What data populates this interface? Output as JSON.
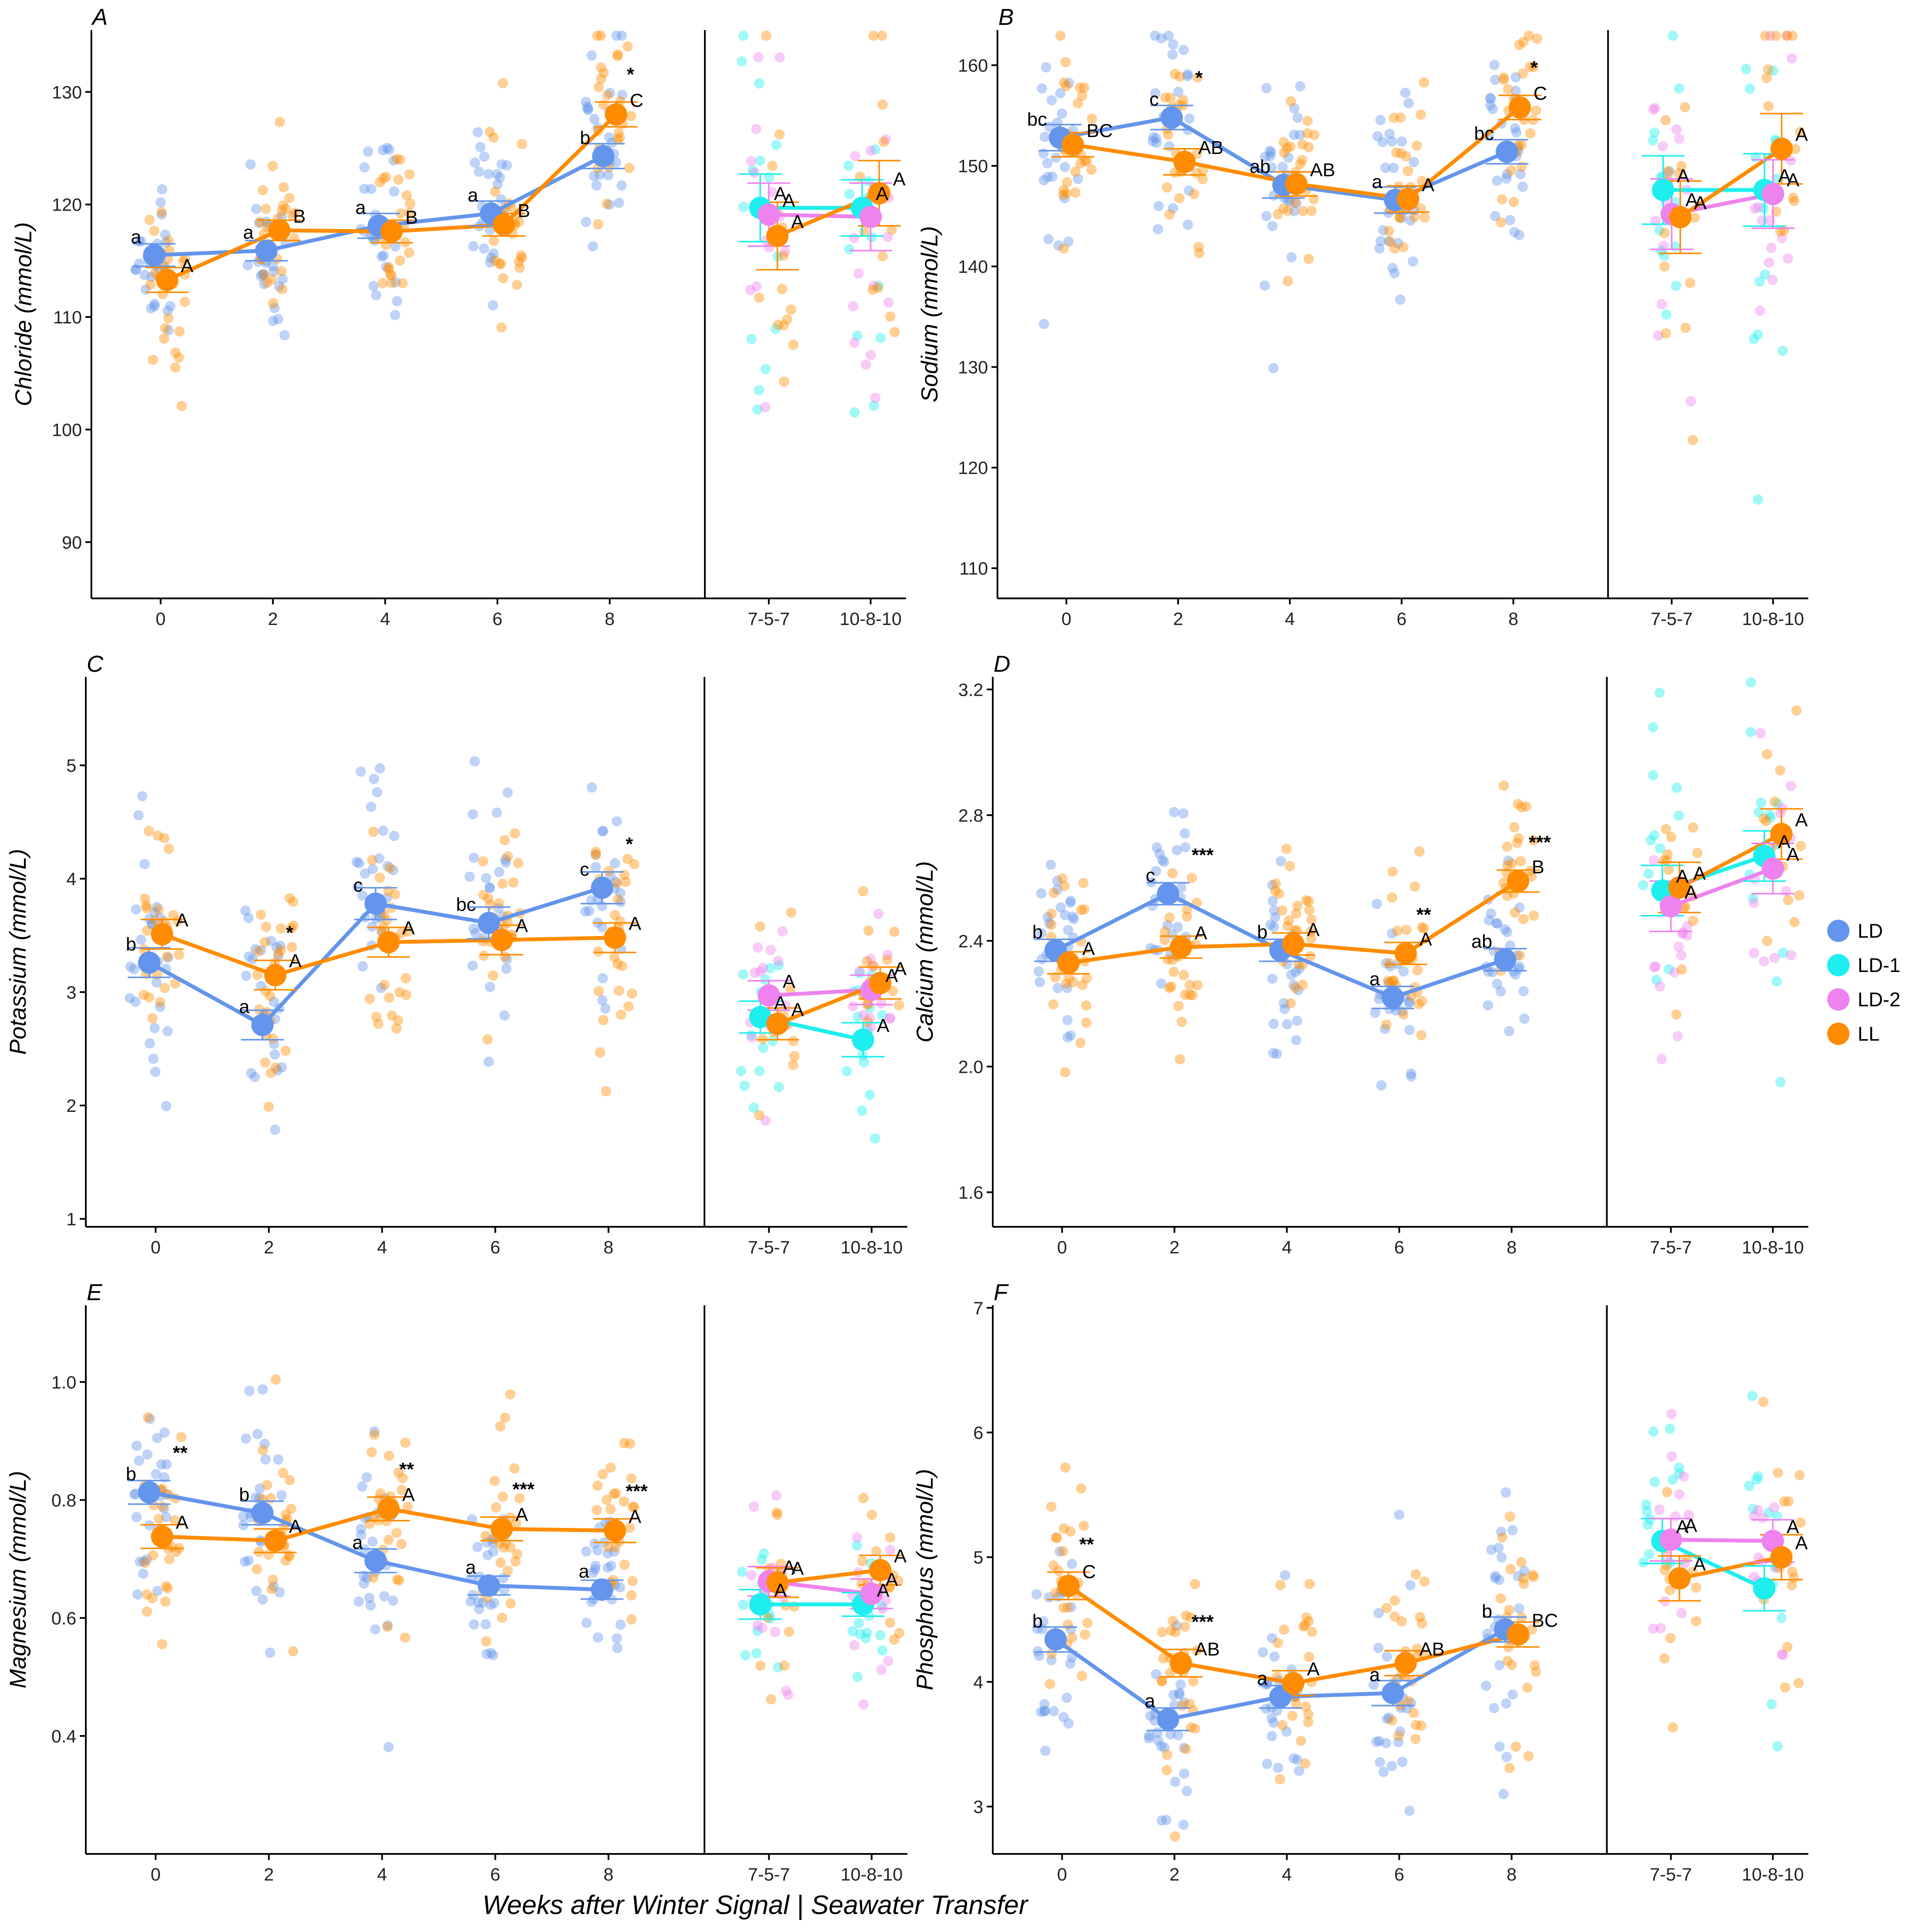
{
  "xlabel": "Weeks after Winter Signal | Seawater Transfer",
  "colors": {
    "LD": "#6495ED",
    "LD-1": "#1EEEEE",
    "LD-2": "#EE82EE",
    "LL": "#FF8C00"
  },
  "legend": [
    "LD",
    "LD-1",
    "LD-2",
    "LL"
  ],
  "chart_data": [
    {
      "type": "scatter",
      "panel": "A",
      "ylabel": "Chloride (mmol/L)",
      "ylim": [
        85,
        135.5
      ],
      "yticks": [
        90,
        100,
        110,
        120,
        130
      ],
      "left_categories": [
        "0",
        "2",
        "4",
        "6",
        "8"
      ],
      "right_categories": [
        "7-5-7",
        "10-8-10"
      ],
      "series": [
        {
          "name": "LD",
          "part": "left",
          "means": [
            115.5,
            115.9,
            118.1,
            119.2,
            124.3
          ],
          "sem": [
            1.0,
            0.9,
            1.1,
            1.1,
            1.1
          ],
          "letters": [
            "a",
            "a",
            "a",
            "a",
            "b"
          ]
        },
        {
          "name": "LL",
          "part": "left",
          "means": [
            113.3,
            117.7,
            117.6,
            118.2,
            128.0
          ],
          "sem": [
            1.1,
            0.9,
            1.0,
            1.0,
            1.1
          ],
          "letters": [
            "A",
            "B",
            "B",
            "B",
            "C"
          ]
        },
        {
          "name": "LD-1",
          "part": "right",
          "means": [
            119.7,
            119.7
          ],
          "sem": [
            3.0,
            2.5
          ],
          "letters": [
            "A",
            "A"
          ]
        },
        {
          "name": "LD-2",
          "part": "right",
          "means": [
            119.1,
            118.9
          ],
          "sem": [
            2.8,
            3.0
          ],
          "letters": [
            "A",
            ""
          ]
        },
        {
          "name": "LL",
          "part": "right",
          "means": [
            117.2,
            121.0
          ],
          "sem": [
            3.0,
            2.9
          ],
          "letters": [
            "A",
            "A"
          ]
        }
      ],
      "stars": [
        {
          "cat": 4,
          "text": "*"
        }
      ]
    },
    {
      "type": "scatter",
      "panel": "B",
      "ylabel": "Sodium (mmol/L)",
      "ylim": [
        107,
        163.5
      ],
      "yticks": [
        110,
        120,
        130,
        140,
        150,
        160
      ],
      "left_categories": [
        "0",
        "2",
        "4",
        "6",
        "8"
      ],
      "right_categories": [
        "7-5-7",
        "10-8-10"
      ],
      "series": [
        {
          "name": "LD",
          "part": "left",
          "means": [
            152.8,
            154.8,
            148.1,
            146.6,
            151.4
          ],
          "sem": [
            1.3,
            1.2,
            1.3,
            1.3,
            1.2
          ],
          "letters": [
            "bc",
            "c",
            "ab",
            "a",
            "bc"
          ]
        },
        {
          "name": "LL",
          "part": "left",
          "means": [
            152.1,
            150.4,
            148.2,
            146.7,
            155.8
          ],
          "sem": [
            1.2,
            1.3,
            1.2,
            1.3,
            1.2
          ],
          "letters": [
            "BC",
            "AB",
            "AB",
            "A",
            "C"
          ]
        },
        {
          "name": "LD-1",
          "part": "right",
          "means": [
            147.6,
            147.6
          ],
          "sem": [
            3.4,
            3.6
          ],
          "letters": [
            "A",
            "A"
          ]
        },
        {
          "name": "LD-2",
          "part": "right",
          "means": [
            145.2,
            147.2
          ],
          "sem": [
            3.5,
            3.4
          ],
          "letters": [
            "A",
            "A"
          ]
        },
        {
          "name": "LL",
          "part": "right",
          "means": [
            144.9,
            151.7
          ],
          "sem": [
            3.6,
            3.5
          ],
          "letters": [
            "A",
            "A"
          ]
        }
      ],
      "stars": [
        {
          "cat": 1,
          "text": "*"
        },
        {
          "cat": 4,
          "text": "*"
        }
      ]
    },
    {
      "type": "scatter",
      "panel": "C",
      "ylabel": "Potassium (mmol/L)",
      "ylim": [
        0.93,
        5.78
      ],
      "yticks": [
        1.0,
        2.0,
        3.0,
        4.0,
        5.0
      ],
      "left_categories": [
        "0",
        "2",
        "4",
        "6",
        "8"
      ],
      "right_categories": [
        "7-5-7",
        "10-8-10"
      ],
      "series": [
        {
          "name": "LD",
          "part": "left",
          "means": [
            3.26,
            2.71,
            3.78,
            3.61,
            3.92
          ],
          "sem": [
            0.13,
            0.13,
            0.14,
            0.14,
            0.14
          ],
          "letters": [
            "b",
            "a",
            "c",
            "bc",
            "c"
          ]
        },
        {
          "name": "LL",
          "part": "left",
          "means": [
            3.51,
            3.15,
            3.44,
            3.46,
            3.48
          ],
          "sem": [
            0.13,
            0.13,
            0.13,
            0.13,
            0.13
          ],
          "letters": [
            "A",
            "A",
            "A",
            "A",
            "A"
          ]
        },
        {
          "name": "LD-1",
          "part": "right",
          "means": [
            2.78,
            2.58
          ],
          "sem": [
            0.14,
            0.15
          ],
          "letters": [
            "A",
            "A"
          ]
        },
        {
          "name": "LD-2",
          "part": "right",
          "means": [
            2.97,
            3.02
          ],
          "sem": [
            0.13,
            0.13
          ],
          "letters": [
            "A",
            "A"
          ]
        },
        {
          "name": "LL",
          "part": "right",
          "means": [
            2.72,
            3.08
          ],
          "sem": [
            0.14,
            0.14
          ],
          "letters": [
            "A",
            "A"
          ]
        }
      ],
      "stars": [
        {
          "cat": 1,
          "text": "*"
        },
        {
          "cat": 4,
          "text": "*"
        }
      ]
    },
    {
      "type": "scatter",
      "panel": "D",
      "ylabel": "Calcium (mmol/L)",
      "ylim": [
        1.49,
        3.24
      ],
      "yticks": [
        1.6,
        2.0,
        2.4,
        2.8,
        3.2
      ],
      "left_categories": [
        "0",
        "2",
        "4",
        "6",
        "8"
      ],
      "right_categories": [
        "7-5-7",
        "10-8-10"
      ],
      "series": [
        {
          "name": "LD",
          "part": "left",
          "means": [
            2.37,
            2.55,
            2.37,
            2.22,
            2.34
          ],
          "sem": [
            0.035,
            0.035,
            0.035,
            0.035,
            0.035
          ],
          "letters": [
            "b",
            "c",
            "b",
            "a",
            "ab"
          ]
        },
        {
          "name": "LL",
          "part": "left",
          "means": [
            2.33,
            2.38,
            2.39,
            2.36,
            2.59
          ],
          "sem": [
            0.035,
            0.035,
            0.035,
            0.035,
            0.035
          ],
          "letters": [
            "A",
            "A",
            "A",
            "A",
            "B"
          ]
        },
        {
          "name": "LD-1",
          "part": "right",
          "means": [
            2.56,
            2.67
          ],
          "sem": [
            0.08,
            0.08
          ],
          "letters": [
            "A",
            "A"
          ]
        },
        {
          "name": "LD-2",
          "part": "right",
          "means": [
            2.51,
            2.63
          ],
          "sem": [
            0.08,
            0.08
          ],
          "letters": [
            "A",
            "A"
          ]
        },
        {
          "name": "LL",
          "part": "right",
          "means": [
            2.57,
            2.74
          ],
          "sem": [
            0.08,
            0.08
          ],
          "letters": [
            "A",
            "A"
          ]
        }
      ],
      "stars": [
        {
          "cat": 1,
          "text": "***"
        },
        {
          "cat": 3,
          "text": "**"
        },
        {
          "cat": 4,
          "text": "***"
        }
      ]
    },
    {
      "type": "scatter",
      "panel": "E",
      "ylabel": "Magnesium (mmol/L)",
      "ylim": [
        0.2,
        1.13
      ],
      "yticks": [
        0.4,
        0.6,
        0.8,
        1.0
      ],
      "left_categories": [
        "0",
        "2",
        "4",
        "6",
        "8"
      ],
      "right_categories": [
        "7-5-7",
        "10-8-10"
      ],
      "series": [
        {
          "name": "LD",
          "part": "left",
          "means": [
            0.813,
            0.778,
            0.697,
            0.655,
            0.648
          ],
          "sem": [
            0.02,
            0.02,
            0.02,
            0.016,
            0.016
          ],
          "letters": [
            "b",
            "b",
            "a",
            "a",
            "a"
          ]
        },
        {
          "name": "LL",
          "part": "left",
          "means": [
            0.738,
            0.731,
            0.785,
            0.751,
            0.748
          ],
          "sem": [
            0.02,
            0.02,
            0.02,
            0.02,
            0.02
          ],
          "letters": [
            "A",
            "A",
            "A",
            "A",
            "A"
          ]
        },
        {
          "name": "LD-1",
          "part": "right",
          "means": [
            0.623,
            0.623
          ],
          "sem": [
            0.025,
            0.02
          ],
          "letters": [
            "A",
            "A"
          ]
        },
        {
          "name": "LD-2",
          "part": "right",
          "means": [
            0.662,
            0.641
          ],
          "sem": [
            0.025,
            0.025
          ],
          "letters": [
            "A",
            "A"
          ]
        },
        {
          "name": "LL",
          "part": "right",
          "means": [
            0.66,
            0.681
          ],
          "sem": [
            0.025,
            0.025
          ],
          "letters": [
            "A",
            "A"
          ]
        }
      ],
      "stars": [
        {
          "cat": 0,
          "text": "**"
        },
        {
          "cat": 2,
          "text": "**"
        },
        {
          "cat": 3,
          "text": "***"
        },
        {
          "cat": 4,
          "text": "***"
        }
      ]
    },
    {
      "type": "scatter",
      "panel": "F",
      "ylabel": "Phosphorus (mmol/L)",
      "ylim": [
        2.62,
        7.02
      ],
      "yticks": [
        3.0,
        4.0,
        5.0,
        6.0,
        7.0
      ],
      "left_categories": [
        "0",
        "2",
        "4",
        "6",
        "8"
      ],
      "right_categories": [
        "7-5-7",
        "10-8-10"
      ],
      "series": [
        {
          "name": "LD",
          "part": "left",
          "means": [
            4.34,
            3.7,
            3.88,
            3.91,
            4.42
          ],
          "sem": [
            0.1,
            0.09,
            0.09,
            0.1,
            0.1
          ],
          "letters": [
            "b",
            "a",
            "a",
            "a",
            "b"
          ]
        },
        {
          "name": "LL",
          "part": "left",
          "means": [
            4.77,
            4.15,
            3.99,
            4.15,
            4.38
          ],
          "sem": [
            0.11,
            0.11,
            0.1,
            0.1,
            0.1
          ],
          "letters": [
            "C",
            "AB",
            "A",
            "AB",
            "BC"
          ]
        },
        {
          "name": "LD-1",
          "part": "right",
          "means": [
            5.13,
            4.75
          ],
          "sem": [
            0.18,
            0.18
          ],
          "letters": [
            "A",
            ""
          ]
        },
        {
          "name": "LD-2",
          "part": "right",
          "means": [
            5.14,
            5.13
          ],
          "sem": [
            0.17,
            0.17
          ],
          "letters": [
            "A",
            "A"
          ]
        },
        {
          "name": "LL",
          "part": "right",
          "means": [
            4.83,
            5.0
          ],
          "sem": [
            0.18,
            0.18
          ],
          "letters": [
            "A",
            "A"
          ]
        }
      ],
      "stars": [
        {
          "cat": 0,
          "text": "**"
        },
        {
          "cat": 1,
          "text": "***"
        }
      ]
    }
  ]
}
